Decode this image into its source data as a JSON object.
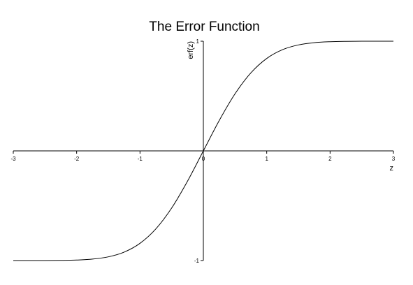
{
  "chart_data": {
    "type": "line",
    "title": "The Error Function",
    "xlabel": "z",
    "ylabel": "erf(z)",
    "xlim": [
      -3,
      3
    ],
    "ylim": [
      -1,
      1
    ],
    "xticks": [
      -3,
      -2,
      -1,
      0,
      1,
      2,
      3
    ],
    "xtick_labels": [
      "-3",
      "-2",
      "-1",
      "0",
      "1",
      "2",
      "3"
    ],
    "yticks": [
      -1,
      1
    ],
    "ytick_labels": [
      "-1",
      "1"
    ],
    "grid": false,
    "series": [
      {
        "color": "#000000",
        "x": [
          -3,
          -2.75,
          -2.5,
          -2.25,
          -2,
          -1.75,
          -1.5,
          -1.25,
          -1,
          -0.75,
          -0.5,
          -0.25,
          0,
          0.25,
          0.5,
          0.75,
          1,
          1.25,
          1.5,
          1.75,
          2,
          2.25,
          2.5,
          2.75,
          3
        ],
        "y": [
          -1.0,
          -0.9999,
          -0.9996,
          -0.9985,
          -0.9953,
          -0.9867,
          -0.9661,
          -0.9229,
          -0.8427,
          -0.7112,
          -0.5205,
          -0.2763,
          0.0,
          0.2763,
          0.5205,
          0.7112,
          0.8427,
          0.9229,
          0.9661,
          0.9867,
          0.9953,
          0.9985,
          0.9996,
          0.9999,
          1.0
        ]
      }
    ]
  }
}
